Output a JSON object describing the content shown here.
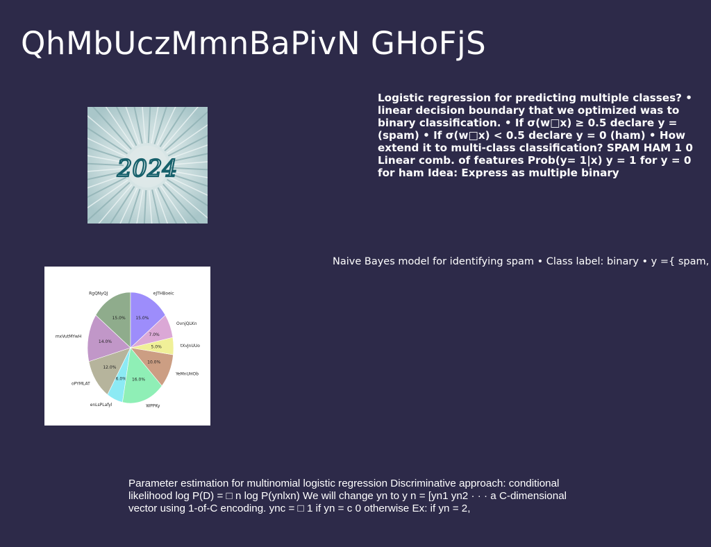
{
  "slide": {
    "title": "QhMbUczMmnBaPivN GHoFjS",
    "bold_paragraph": "Logistic regression for predicting multiple classes? • linear decision boundary that we optimized was to binary classification. • If σ(w□x) ≥ 0.5 declare y = (spam) • If σ(w□x) < 0.5 declare y = 0 (ham) • How extend it to multi-class classification? SPAM HAM 1 0 Linear comb. of features Prob(y= 1|x) y = 1 for y = 0 for ham Idea: Express as multiple binary",
    "light_paragraph": "Naive Bayes model for identifying spam • Class label: binary • y ={ spam,",
    "params_paragraph": "Parameter estimation for multinomial logistic regression Discriminative approach: conditional likelihood log P(D) = □ n log P(ynlxn) We will change yn to y n = [yn1 yn2 · · · a C-dimensional vector using 1-of-C encoding. ync = □ 1 if yn = c 0 otherwise Ex: if yn = 2,",
    "photo_text": "2024"
  },
  "chart_data": {
    "type": "pie",
    "title": "",
    "start_angle_deg": 90,
    "direction": "counterclockwise",
    "slices": [
      {
        "label": "RgQNyQJ",
        "value": 15.0,
        "pct_label": "15.0%",
        "color": "#8fac8c"
      },
      {
        "label": "mxVutMYwH",
        "value": 14.0,
        "pct_label": "14.0%",
        "color": "#c197c8"
      },
      {
        "label": "oPYMLAT",
        "value": 12.0,
        "pct_label": "12.0%",
        "color": "#b6b49c"
      },
      {
        "label": "enLsPLafyl",
        "value": 6.0,
        "pct_label": "6.0%",
        "color": "#8ceaf4"
      },
      {
        "label": "WPPKy",
        "value": 16.0,
        "pct_label": "16.0%",
        "color": "#8fefb6"
      },
      {
        "label": "YeMnUHOb",
        "value": 10.0,
        "pct_label": "10.0%",
        "color": "#cc9e83"
      },
      {
        "label": "tXvJnUUo",
        "value": 5.0,
        "pct_label": "5.0%",
        "color": "#f0f098"
      },
      {
        "label": "OvnjQLKn",
        "value": 7.0,
        "pct_label": "7.0%",
        "color": "#dba8d6"
      },
      {
        "label": "eJTHBoeic",
        "value": 15.0,
        "pct_label": "15.0%",
        "color": "#9d8dfb"
      }
    ]
  }
}
